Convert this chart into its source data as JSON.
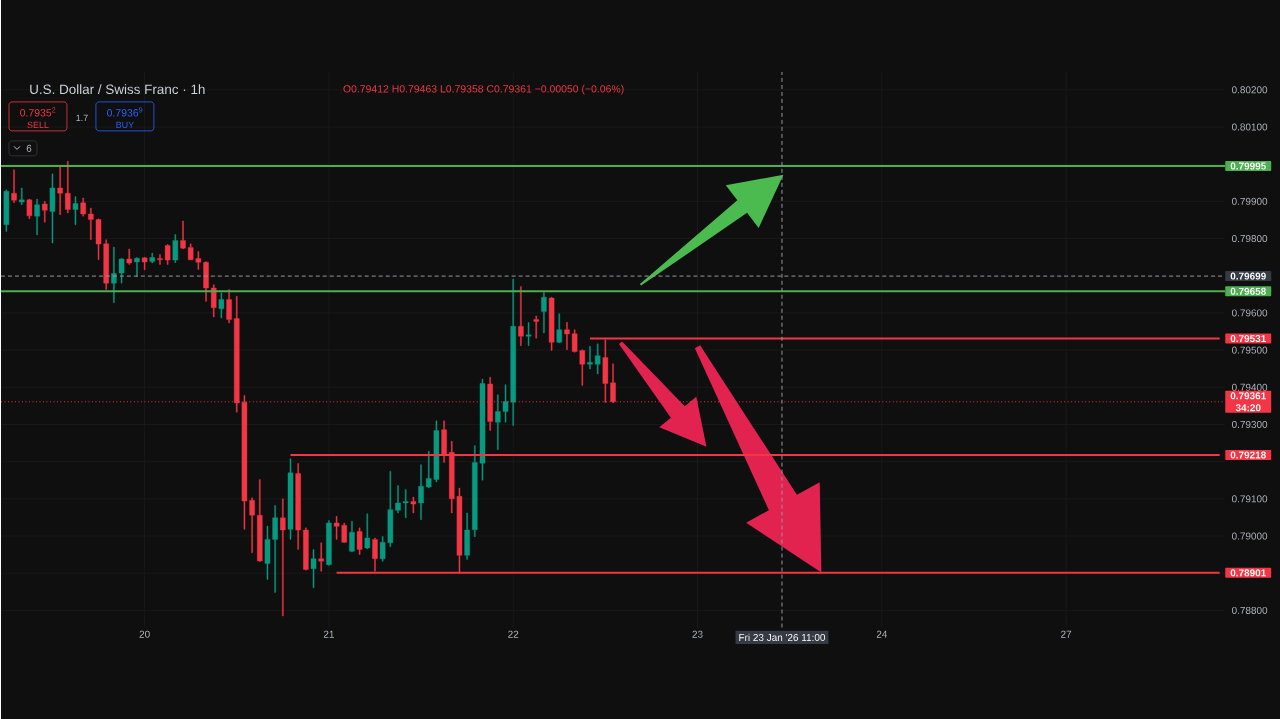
{
  "chart_data": {
    "type": "candlestick",
    "title": "U.S. Dollar / Swiss Franc · 1h",
    "subtitle": "O0.79412 H0.79463 L0.79358 C0.79361 −0.00050 (−0.06%)",
    "annotations": [
      "0.7935$^{2}$",
      "SELL",
      "1.7",
      "0.7936$^{9}$",
      "BUY",
      "6"
    ],
    "categories": [
      null,
      null,
      null,
      null,
      null,
      null,
      null,
      null,
      null,
      null,
      null,
      null,
      null,
      null,
      null,
      null,
      null,
      null,
      "20",
      null,
      null,
      null,
      null,
      null,
      null,
      null,
      null,
      null,
      null,
      null,
      null,
      null,
      null,
      null,
      null,
      null,
      null,
      null,
      null,
      null,
      null,
      null,
      "21",
      null,
      null,
      null,
      null,
      null,
      null,
      null,
      null,
      null,
      null,
      null,
      null,
      null,
      null,
      null,
      null,
      null,
      null,
      null,
      null,
      null,
      null,
      null,
      "22",
      null,
      null,
      null,
      null,
      null,
      null,
      null,
      null,
      null,
      null,
      null,
      null,
      null,
      null,
      null,
      null,
      null,
      null,
      null,
      null,
      null,
      null,
      null,
      "23",
      null,
      null,
      null,
      null,
      null,
      null,
      null,
      null,
      null,
      null,
      "Fri 23 Jan '26 11:00",
      null,
      null,
      null,
      null,
      null,
      null,
      null,
      null,
      null,
      null,
      null,
      null,
      "24",
      null,
      null,
      null,
      null,
      null,
      null,
      null,
      null,
      null,
      null,
      null,
      null,
      null,
      null,
      null,
      null,
      null,
      null,
      null,
      null,
      null,
      null,
      null,
      "27",
      null,
      null,
      null,
      null,
      null,
      null,
      null,
      null,
      null,
      null,
      null,
      null,
      null,
      null,
      null,
      null,
      null,
      null,
      null,
      null
    ],
    "ohlc": [
      [
        0.79837,
        0.79931,
        0.79819,
        0.79927
      ],
      [
        0.79922,
        0.79985,
        0.79896,
        0.79903
      ],
      [
        0.79898,
        0.79936,
        0.79891,
        0.79904
      ],
      [
        0.79904,
        0.79906,
        0.79853,
        0.79861
      ],
      [
        0.7986,
        0.79906,
        0.7981,
        0.79891
      ],
      [
        0.79893,
        0.799,
        0.79844,
        0.79876
      ],
      [
        0.79873,
        0.79974,
        0.79788,
        0.79936
      ],
      [
        0.79936,
        0.79994,
        0.79864,
        0.79922
      ],
      [
        0.79922,
        0.80008,
        0.79869,
        0.79878
      ],
      [
        0.79878,
        0.79913,
        0.79837,
        0.79894
      ],
      [
        0.79896,
        0.79909,
        0.7986,
        0.79866
      ],
      [
        0.79866,
        0.79882,
        0.79797,
        0.79851
      ],
      [
        0.79851,
        0.79853,
        0.79743,
        0.79785
      ],
      [
        0.79786,
        0.79797,
        0.79663,
        0.7968
      ],
      [
        0.7968,
        0.79777,
        0.79627,
        0.79706
      ],
      [
        0.79707,
        0.79747,
        0.7968,
        0.79745
      ],
      [
        0.79745,
        0.79772,
        0.7973,
        0.79734
      ],
      [
        0.79737,
        0.79749,
        0.79698,
        0.79747
      ],
      [
        0.79748,
        0.7975,
        0.79716,
        0.79737
      ],
      [
        0.79738,
        0.79761,
        0.79734,
        0.79749
      ],
      [
        0.79746,
        0.79757,
        0.7973,
        0.79743
      ],
      [
        0.79781,
        0.79784,
        0.7973,
        0.79742
      ],
      [
        0.79742,
        0.79811,
        0.79735,
        0.79795
      ],
      [
        0.79795,
        0.79847,
        0.79772,
        0.79774
      ],
      [
        0.79776,
        0.79786,
        0.79742,
        0.79743
      ],
      [
        0.79746,
        0.79765,
        0.79717,
        0.79736
      ],
      [
        0.79736,
        0.79738,
        0.79631,
        0.79667
      ],
      [
        0.79667,
        0.79676,
        0.79589,
        0.79614
      ],
      [
        0.79611,
        0.79654,
        0.79586,
        0.79636
      ],
      [
        0.79636,
        0.79663,
        0.79573,
        0.79582
      ],
      [
        0.79585,
        0.79645,
        0.79333,
        0.79358
      ],
      [
        0.7936,
        0.79378,
        0.79018,
        0.79094
      ],
      [
        0.79096,
        0.79103,
        0.78955,
        0.79056
      ],
      [
        0.79056,
        0.79152,
        0.78931,
        0.78933
      ],
      [
        0.78926,
        0.79027,
        0.78883,
        0.78991
      ],
      [
        0.78991,
        0.79082,
        0.78848,
        0.79049
      ],
      [
        0.79049,
        0.791,
        0.78785,
        0.79016
      ],
      [
        0.79018,
        0.79208,
        0.78991,
        0.7917
      ],
      [
        0.79168,
        0.79195,
        0.78964,
        0.79016
      ],
      [
        0.79016,
        0.79022,
        0.78908,
        0.7891
      ],
      [
        0.78912,
        0.78964,
        0.78861,
        0.78939
      ],
      [
        0.78939,
        0.78982,
        0.78905,
        0.78932
      ],
      [
        0.78923,
        0.79042,
        0.78921,
        0.79035
      ],
      [
        0.79035,
        0.79053,
        0.78991,
        0.79026
      ],
      [
        0.79029,
        0.79035,
        0.78982,
        0.78983
      ],
      [
        0.78959,
        0.7904,
        0.78957,
        0.7901
      ],
      [
        0.79012,
        0.79022,
        0.7895,
        0.78964
      ],
      [
        0.78968,
        0.7906,
        0.78965,
        0.78995
      ],
      [
        0.78991,
        0.78995,
        0.78905,
        0.78939
      ],
      [
        0.78939,
        0.78999,
        0.78932,
        0.78983
      ],
      [
        0.78982,
        0.79174,
        0.78971,
        0.79071
      ],
      [
        0.79069,
        0.79136,
        0.79062,
        0.79089
      ],
      [
        0.79089,
        0.79125,
        0.79049,
        0.79093
      ],
      [
        0.79093,
        0.79105,
        0.79062,
        0.79086
      ],
      [
        0.79089,
        0.79192,
        0.79044,
        0.79134
      ],
      [
        0.79132,
        0.79228,
        0.79129,
        0.79155
      ],
      [
        0.79152,
        0.7931,
        0.79145,
        0.79284
      ],
      [
        0.79286,
        0.7931,
        0.79198,
        0.79219
      ],
      [
        0.79225,
        0.79255,
        0.79062,
        0.791
      ],
      [
        0.79107,
        0.79129,
        0.78901,
        0.78948
      ],
      [
        0.78948,
        0.79062,
        0.78937,
        0.79016
      ],
      [
        0.79017,
        0.79243,
        0.78998,
        0.79198
      ],
      [
        0.79196,
        0.79422,
        0.7915,
        0.7941
      ],
      [
        0.79409,
        0.79427,
        0.79284,
        0.79308
      ],
      [
        0.79306,
        0.7938,
        0.79232,
        0.79335
      ],
      [
        0.79335,
        0.79407,
        0.79306,
        0.79362
      ],
      [
        0.7936,
        0.79691,
        0.79297,
        0.79564
      ],
      [
        0.79564,
        0.79671,
        0.79512,
        0.79537
      ],
      [
        0.79537,
        0.79574,
        0.79512,
        0.79541
      ],
      [
        0.79582,
        0.79592,
        0.79532,
        0.79577
      ],
      [
        0.79604,
        0.79655,
        0.79546,
        0.79642
      ],
      [
        0.7964,
        0.79642,
        0.79499,
        0.79521
      ],
      [
        0.79521,
        0.79598,
        0.79519,
        0.79555
      ],
      [
        0.79555,
        0.79575,
        0.79501,
        0.79543
      ],
      [
        0.79544,
        0.79555,
        0.79494,
        0.79496
      ],
      [
        0.79499,
        0.79501,
        0.79405,
        0.79462
      ],
      [
        0.79462,
        0.7951,
        0.79449,
        0.79467
      ],
      [
        0.79462,
        0.79517,
        0.79436,
        0.79485
      ],
      [
        0.7948,
        0.79528,
        0.79359,
        0.7941
      ],
      [
        0.79412,
        0.79463,
        0.79358,
        0.79361
      ],
      null,
      null,
      null,
      null,
      null,
      null,
      null,
      null,
      null,
      null,
      null,
      null,
      null,
      null,
      null,
      null,
      null,
      null,
      null,
      null,
      null,
      null,
      null,
      null,
      null,
      null,
      null,
      null,
      null,
      null,
      null,
      null,
      null,
      null,
      null,
      null,
      null,
      null,
      null,
      null,
      null,
      null,
      null,
      null,
      null,
      null,
      null,
      null,
      null,
      null,
      null,
      null,
      null,
      null,
      null,
      null,
      null,
      null,
      null,
      null,
      null,
      null,
      null,
      null,
      null,
      null,
      null,
      null,
      null,
      null,
      null,
      null,
      null,
      null,
      null,
      null,
      null,
      null,
      null
    ],
    "colors": [
      "#089981",
      "#f23645",
      "#089981",
      "#f23645",
      "#089981",
      "#f23645",
      "#089981",
      "#f23645",
      "#f23645",
      "#089981",
      "#f23645",
      "#f23645",
      "#f23645",
      "#f23645",
      "#089981",
      "#089981",
      "#f23645",
      "#089981",
      "#f23645",
      "#089981",
      "#f23645",
      "#f23645",
      "#089981",
      "#f23645",
      "#f23645",
      "#f23645",
      "#f23645",
      "#f23645",
      "#089981",
      "#f23645",
      "#f23645",
      "#f23645",
      "#f23645",
      "#f23645",
      "#089981",
      "#089981",
      "#f23645",
      "#089981",
      "#f23645",
      "#f23645",
      "#089981",
      "#f23645",
      "#089981",
      "#f23645",
      "#f23645",
      "#089981",
      "#f23645",
      "#089981",
      "#f23645",
      "#089981",
      "#089981",
      "#089981",
      "#089981",
      "#f23645",
      "#089981",
      "#089981",
      "#089981",
      "#f23645",
      "#f23645",
      "#f23645",
      "#089981",
      "#089981",
      "#089981",
      "#f23645",
      "#089981",
      "#089981",
      "#089981",
      "#f23645",
      "#089981",
      "#f23645",
      "#089981",
      "#f23645",
      "#089981",
      "#f23645",
      "#f23645",
      "#f23645",
      "#089981",
      "#089981",
      "#f23645",
      "#f23645",
      null,
      null,
      null,
      null,
      null,
      null,
      null,
      null,
      null,
      null,
      null,
      null,
      null,
      null,
      null,
      null,
      null,
      null,
      null,
      null,
      null,
      null,
      null,
      null,
      null,
      null,
      null,
      null,
      null,
      null,
      null,
      null,
      null,
      null,
      null,
      null,
      null,
      null,
      null,
      null,
      null,
      null,
      null,
      null,
      null,
      null,
      null,
      null,
      null,
      null,
      null,
      null,
      null,
      null,
      null,
      null,
      null,
      null,
      null,
      null,
      null,
      null,
      null,
      null,
      null,
      null,
      null,
      null,
      null,
      null,
      null,
      null,
      null,
      null,
      null,
      null,
      null,
      null,
      null
    ],
    "series": [
      {
        "type": "line",
        "color": "#f23645",
        "values": [
          null,
          null,
          null,
          null,
          null,
          null,
          null,
          null,
          null,
          null,
          null,
          null,
          null,
          null,
          null,
          null,
          null,
          null,
          null,
          null,
          null,
          null,
          null,
          null,
          null,
          null,
          null,
          null,
          null,
          null,
          null,
          null,
          null,
          null,
          null,
          null,
          null,
          null,
          null,
          null,
          null,
          null,
          null,
          null,
          null,
          null,
          null,
          null,
          null,
          null,
          null,
          null,
          null,
          null,
          null,
          null,
          null,
          null,
          null,
          null,
          null,
          null,
          null,
          null,
          null,
          null,
          null,
          null,
          null,
          null,
          null,
          null,
          null,
          null,
          null,
          null,
          0.79531,
          0.79531,
          0.79531,
          0.79531,
          0.79531,
          0.79531,
          0.79531,
          0.79531,
          0.79531,
          0.79531,
          0.79531,
          0.79531,
          0.79531,
          0.79531,
          0.79531,
          0.79531,
          0.79531,
          0.79531,
          0.79531,
          0.79531,
          0.79531,
          0.79531,
          0.79531,
          0.79531,
          0.79531,
          0.79531,
          0.79531,
          0.79531,
          0.79531,
          0.79531,
          0.79531,
          0.79531,
          0.79531,
          0.79531,
          0.79531,
          0.79531,
          0.79531,
          0.79531,
          0.79531,
          0.79531,
          0.79531,
          0.79531,
          0.79531,
          0.79531,
          0.79531,
          0.79531,
          0.79531,
          0.79531,
          0.79531,
          0.79531,
          0.79531,
          0.79531,
          0.79531,
          0.79531,
          0.79531,
          0.79531,
          0.79531,
          0.79531,
          0.79531,
          0.79531,
          0.79531,
          0.79531,
          0.79531,
          0.79531,
          0.79531,
          0.79531,
          0.79531,
          0.79531,
          0.79531,
          0.79531,
          0.79531,
          0.79531,
          0.79531,
          0.79531,
          0.79531,
          0.79531,
          0.79531,
          0.79531,
          0.79531,
          0.79531,
          0.79531,
          0.79531,
          0.79531
        ],
        "value_labels": [
          null,
          null,
          null,
          null,
          null,
          null,
          null,
          null,
          null,
          null,
          null,
          null,
          null,
          null,
          null,
          null,
          null,
          null,
          null,
          null,
          null,
          null,
          null,
          null,
          null,
          null,
          null,
          null,
          null,
          null,
          null,
          null,
          null,
          null,
          null,
          null,
          null,
          null,
          null,
          null,
          null,
          null,
          null,
          null,
          null,
          null,
          null,
          null,
          null,
          null,
          null,
          null,
          null,
          null,
          null,
          null,
          null,
          null,
          null,
          null,
          null,
          null,
          null,
          null,
          null,
          null,
          null,
          null,
          null,
          null,
          null,
          null,
          null,
          null,
          null,
          null,
          null,
          null,
          null,
          null,
          null,
          null,
          null,
          null,
          null,
          null,
          null,
          null,
          null,
          null,
          null,
          null,
          null,
          null,
          null,
          null,
          null,
          null,
          null,
          null,
          null,
          null,
          null,
          null,
          null,
          null,
          null,
          null,
          null,
          null,
          null,
          null,
          null,
          null,
          null,
          null,
          null,
          null,
          null,
          null,
          null,
          null,
          null,
          null,
          null,
          null,
          null,
          null,
          null,
          null,
          null,
          null,
          null,
          null,
          null,
          null,
          null,
          null,
          null,
          null,
          null,
          null,
          null,
          null,
          null,
          null,
          null,
          null,
          null,
          null,
          null,
          null,
          null,
          null,
          null,
          null,
          null,
          null,
          "0.79531"
        ]
      },
      {
        "type": "line",
        "color": "#f23645",
        "values": [
          null,
          null,
          null,
          null,
          null,
          null,
          null,
          null,
          null,
          null,
          null,
          null,
          null,
          null,
          null,
          null,
          null,
          null,
          null,
          null,
          null,
          null,
          null,
          null,
          null,
          null,
          null,
          null,
          null,
          null,
          null,
          null,
          null,
          null,
          null,
          null,
          null,
          0.79218,
          0.79218,
          0.79218,
          0.79218,
          0.79218,
          0.79218,
          0.79218,
          0.79218,
          0.79218,
          0.79218,
          0.79218,
          0.79218,
          0.79218,
          0.79218,
          0.79218,
          0.79218,
          0.79218,
          0.79218,
          0.79218,
          0.79218,
          0.79218,
          0.79218,
          0.79218,
          0.79218,
          0.79218,
          0.79218,
          0.79218,
          0.79218,
          0.79218,
          0.79218,
          0.79218,
          0.79218,
          0.79218,
          0.79218,
          0.79218,
          0.79218,
          0.79218,
          0.79218,
          0.79218,
          0.79218,
          0.79218,
          0.79218,
          0.79218,
          0.79218,
          0.79218,
          0.79218,
          0.79218,
          0.79218,
          0.79218,
          0.79218,
          0.79218,
          0.79218,
          0.79218,
          0.79218,
          0.79218,
          0.79218,
          0.79218,
          0.79218,
          0.79218,
          0.79218,
          0.79218,
          0.79218,
          0.79218,
          0.79218,
          0.79218,
          0.79218,
          0.79218,
          0.79218,
          0.79218,
          0.79218,
          0.79218,
          0.79218,
          0.79218,
          0.79218,
          0.79218,
          0.79218,
          0.79218,
          0.79218,
          0.79218,
          0.79218,
          0.79218,
          0.79218,
          0.79218,
          0.79218,
          0.79218,
          0.79218,
          0.79218,
          0.79218,
          0.79218,
          0.79218,
          0.79218,
          0.79218,
          0.79218,
          0.79218,
          0.79218,
          0.79218,
          0.79218,
          0.79218,
          0.79218,
          0.79218,
          0.79218,
          0.79218,
          0.79218,
          0.79218,
          0.79218,
          0.79218,
          0.79218,
          0.79218,
          0.79218,
          0.79218,
          0.79218,
          0.79218,
          0.79218,
          0.79218,
          0.79218,
          0.79218,
          0.79218,
          0.79218,
          0.79218,
          0.79218,
          0.79218,
          0.79218
        ],
        "value_labels": [
          null,
          null,
          null,
          null,
          null,
          null,
          null,
          null,
          null,
          null,
          null,
          null,
          null,
          null,
          null,
          null,
          null,
          null,
          null,
          null,
          null,
          null,
          null,
          null,
          null,
          null,
          null,
          null,
          null,
          null,
          null,
          null,
          null,
          null,
          null,
          null,
          null,
          null,
          null,
          null,
          null,
          null,
          null,
          null,
          null,
          null,
          null,
          null,
          null,
          null,
          null,
          null,
          null,
          null,
          null,
          null,
          null,
          null,
          null,
          null,
          null,
          null,
          null,
          null,
          null,
          null,
          null,
          null,
          null,
          null,
          null,
          null,
          null,
          null,
          null,
          null,
          null,
          null,
          null,
          null,
          null,
          null,
          null,
          null,
          null,
          null,
          null,
          null,
          null,
          null,
          null,
          null,
          null,
          null,
          null,
          null,
          null,
          null,
          null,
          null,
          null,
          null,
          null,
          null,
          null,
          null,
          null,
          null,
          null,
          null,
          null,
          null,
          null,
          null,
          null,
          null,
          null,
          null,
          null,
          null,
          null,
          null,
          null,
          null,
          null,
          null,
          null,
          null,
          null,
          null,
          null,
          null,
          null,
          null,
          null,
          null,
          null,
          null,
          null,
          null,
          null,
          null,
          null,
          null,
          null,
          null,
          null,
          null,
          null,
          null,
          null,
          null,
          null,
          null,
          null,
          null,
          null,
          null,
          "0.79218"
        ]
      },
      {
        "type": "line",
        "color": "#f23645",
        "values": [
          null,
          null,
          null,
          null,
          null,
          null,
          null,
          null,
          null,
          null,
          null,
          null,
          null,
          null,
          null,
          null,
          null,
          null,
          null,
          null,
          null,
          null,
          null,
          null,
          null,
          null,
          null,
          null,
          null,
          null,
          null,
          null,
          null,
          null,
          null,
          null,
          null,
          null,
          null,
          null,
          null,
          null,
          null,
          0.78901,
          0.78901,
          0.78901,
          0.78901,
          0.78901,
          0.78901,
          0.78901,
          0.78901,
          0.78901,
          0.78901,
          0.78901,
          0.78901,
          0.78901,
          0.78901,
          0.78901,
          0.78901,
          0.78901,
          0.78901,
          0.78901,
          0.78901,
          0.78901,
          0.78901,
          0.78901,
          0.78901,
          0.78901,
          0.78901,
          0.78901,
          0.78901,
          0.78901,
          0.78901,
          0.78901,
          0.78901,
          0.78901,
          0.78901,
          0.78901,
          0.78901,
          0.78901,
          0.78901,
          0.78901,
          0.78901,
          0.78901,
          0.78901,
          0.78901,
          0.78901,
          0.78901,
          0.78901,
          0.78901,
          0.78901,
          0.78901,
          0.78901,
          0.78901,
          0.78901,
          0.78901,
          0.78901,
          0.78901,
          0.78901,
          0.78901,
          0.78901,
          0.78901,
          0.78901,
          0.78901,
          0.78901,
          0.78901,
          0.78901,
          0.78901,
          0.78901,
          0.78901,
          0.78901,
          0.78901,
          0.78901,
          0.78901,
          0.78901,
          0.78901,
          0.78901,
          0.78901,
          0.78901,
          0.78901,
          0.78901,
          0.78901,
          0.78901,
          0.78901,
          0.78901,
          0.78901,
          0.78901,
          0.78901,
          0.78901,
          0.78901,
          0.78901,
          0.78901,
          0.78901,
          0.78901,
          0.78901,
          0.78901,
          0.78901,
          0.78901,
          0.78901,
          0.78901,
          0.78901,
          0.78901,
          0.78901,
          0.78901,
          0.78901,
          0.78901,
          0.78901,
          0.78901,
          0.78901,
          0.78901,
          0.78901,
          0.78901,
          0.78901,
          0.78901,
          0.78901,
          0.78901,
          0.78901,
          0.78901,
          0.78901
        ],
        "value_labels": [
          null,
          null,
          null,
          null,
          null,
          null,
          null,
          null,
          null,
          null,
          null,
          null,
          null,
          null,
          null,
          null,
          null,
          null,
          null,
          null,
          null,
          null,
          null,
          null,
          null,
          null,
          null,
          null,
          null,
          null,
          null,
          null,
          null,
          null,
          null,
          null,
          null,
          null,
          null,
          null,
          null,
          null,
          null,
          null,
          null,
          null,
          null,
          null,
          null,
          null,
          null,
          null,
          null,
          null,
          null,
          null,
          null,
          null,
          null,
          null,
          null,
          null,
          null,
          null,
          null,
          null,
          null,
          null,
          null,
          null,
          null,
          null,
          null,
          null,
          null,
          null,
          null,
          null,
          null,
          null,
          null,
          null,
          null,
          null,
          null,
          null,
          null,
          null,
          null,
          null,
          null,
          null,
          null,
          null,
          null,
          null,
          null,
          null,
          null,
          null,
          null,
          null,
          null,
          null,
          null,
          null,
          null,
          null,
          null,
          null,
          null,
          null,
          null,
          null,
          null,
          null,
          null,
          null,
          null,
          null,
          null,
          null,
          null,
          null,
          null,
          null,
          null,
          null,
          null,
          null,
          null,
          null,
          null,
          null,
          null,
          null,
          null,
          null,
          null,
          null,
          null,
          null,
          null,
          null,
          null,
          null,
          null,
          null,
          null,
          null,
          null,
          null,
          null,
          null,
          null,
          null,
          null,
          null,
          "0.78901"
        ]
      }
    ],
    "ref_lines": [
      {
        "axis": "y",
        "value": 0.79361,
        "label": "0.79361 34:20",
        "color": "#f23645",
        "line_style": "dotted"
      },
      {
        "axis": "y",
        "value": 0.79995,
        "label": "0.79995",
        "color": "#4caf50",
        "line_style": "solid"
      },
      {
        "axis": "y",
        "value": 0.79658,
        "label": "0.79658",
        "color": "#4caf50",
        "line_style": "solid"
      },
      {
        "axis": "y",
        "value": 0.79699,
        "label": "0.79699",
        "color": "#9598a1",
        "line_style": "dashed"
      },
      {
        "axis": "x",
        "value": "Fri 23 Jan '26 11:00",
        "color": "#9598a1",
        "line_style": "dashed"
      }
    ],
    "ylim": [
      0.78754,
      0.80248
    ],
    "yticks": [
      {
        "value": 0.788,
        "label": "0.78800"
      },
      {
        "value": 0.789,
        "label": null
      },
      {
        "value": 0.79,
        "label": "0.79000"
      },
      {
        "value": 0.791,
        "label": "0.79100"
      },
      {
        "value": 0.792,
        "label": null
      },
      {
        "value": 0.793,
        "label": "0.79300"
      },
      {
        "value": 0.794,
        "label": "0.79400"
      },
      {
        "value": 0.795,
        "label": "0.79500"
      },
      {
        "value": 0.796,
        "label": "0.79600"
      },
      {
        "value": 0.798,
        "label": "0.79800"
      },
      {
        "value": 0.799,
        "label": "0.79900"
      },
      {
        "value": 0.8,
        "label": null
      },
      {
        "value": 0.801,
        "label": "0.80100"
      },
      {
        "value": 0.802,
        "label": "0.80200"
      }
    ],
    "grid": true
  }
}
